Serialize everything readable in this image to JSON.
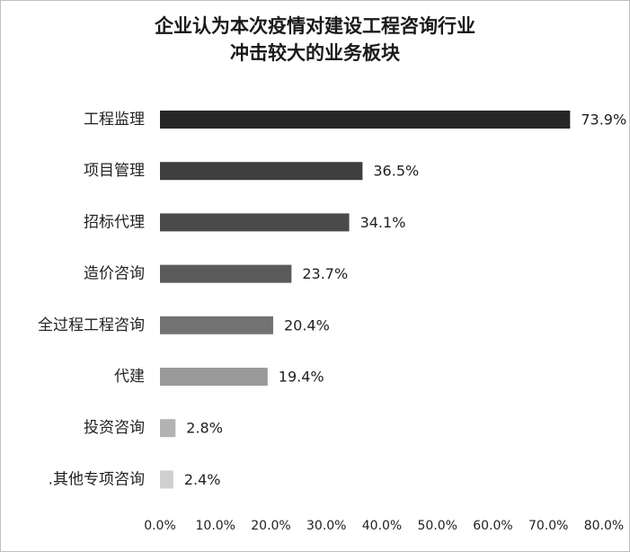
{
  "chart_data": {
    "type": "bar",
    "orientation": "horizontal",
    "title": [
      "企业认为本次疫情对建设工程咨询行业",
      "冲击较大的业务板块"
    ],
    "categories": [
      "工程监理",
      "项目管理",
      "招标代理",
      "造价咨询",
      "全过程工程咨询",
      "代建",
      "投资咨询",
      ".其他专项咨询"
    ],
    "values": [
      73.9,
      36.5,
      34.1,
      23.7,
      20.4,
      19.4,
      2.8,
      2.4
    ],
    "value_labels": [
      "73.9%",
      "36.5%",
      "34.1%",
      "23.7%",
      "20.4%",
      "19.4%",
      "2.8%",
      "2.4%"
    ],
    "colors": [
      "#262626",
      "#3f3f3f",
      "#4a4a4a",
      "#5a5a5a",
      "#737373",
      "#9a9a9a",
      "#b3b3b3",
      "#cfcfcf"
    ],
    "xlim": [
      0,
      80
    ],
    "x_ticks": [
      "0.0%",
      "10.0%",
      "20.0%",
      "30.0%",
      "40.0%",
      "50.0%",
      "60.0%",
      "70.0%",
      "80.0%"
    ],
    "grid": false,
    "legend": "none"
  }
}
